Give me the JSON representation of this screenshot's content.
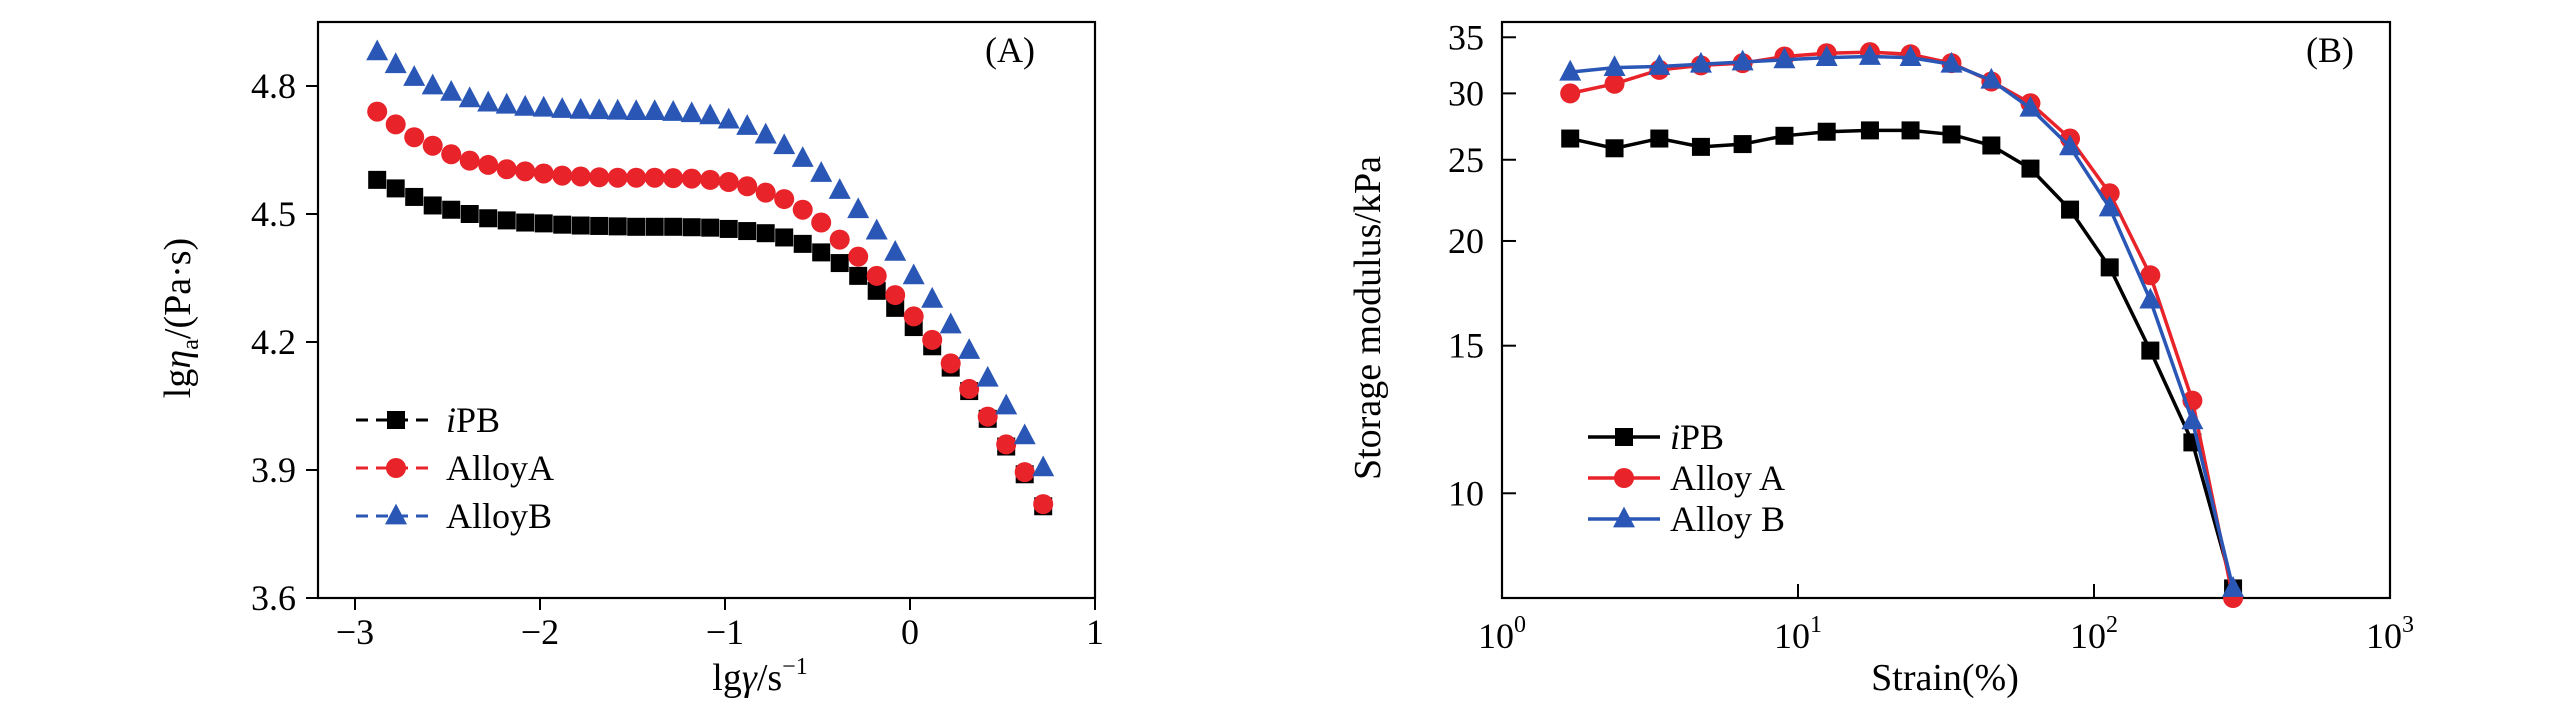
{
  "figure": {
    "panels": [
      "A",
      "B"
    ]
  },
  "chart_data": [
    {
      "type": "scatter",
      "panel_label": "(A)",
      "title": "",
      "xlabel_parts": [
        "lg",
        "γ",
        "/s",
        "−1"
      ],
      "ylabel_parts": [
        "lg",
        "η",
        "a",
        "/(Pa·s)"
      ],
      "xlim": [
        -3.2,
        1.0
      ],
      "ylim": [
        3.6,
        4.95
      ],
      "xticks": [
        -3,
        -2,
        -1,
        0,
        1
      ],
      "xtick_labels": [
        "−3",
        "−2",
        "−1",
        "0",
        "1"
      ],
      "yticks": [
        3.6,
        3.9,
        4.2,
        4.5,
        4.8
      ],
      "ytick_labels": [
        "3.6",
        "3.9",
        "4.2",
        "4.5",
        "4.8"
      ],
      "legend_position": "lower-left",
      "series": [
        {
          "name": "iPB",
          "legend_parts": [
            "i",
            "PB"
          ],
          "color": "#000000",
          "marker": "square",
          "x": [
            -2.88,
            -2.78,
            -2.68,
            -2.58,
            -2.48,
            -2.38,
            -2.28,
            -2.18,
            -2.08,
            -1.98,
            -1.88,
            -1.78,
            -1.68,
            -1.58,
            -1.48,
            -1.38,
            -1.28,
            -1.18,
            -1.08,
            -0.98,
            -0.88,
            -0.78,
            -0.68,
            -0.58,
            -0.48,
            -0.38,
            -0.28,
            -0.18,
            -0.08,
            0.02,
            0.12,
            0.22,
            0.32,
            0.42,
            0.52,
            0.62,
            0.72
          ],
          "y": [
            4.58,
            4.56,
            4.54,
            4.52,
            4.51,
            4.5,
            4.49,
            4.485,
            4.48,
            4.478,
            4.475,
            4.473,
            4.472,
            4.471,
            4.47,
            4.47,
            4.47,
            4.469,
            4.468,
            4.465,
            4.46,
            4.455,
            4.445,
            4.43,
            4.41,
            4.385,
            4.355,
            4.32,
            4.28,
            4.235,
            4.19,
            4.14,
            4.085,
            4.02,
            3.955,
            3.89,
            3.815
          ]
        },
        {
          "name": "AlloyA",
          "legend_parts": [
            "AlloyA"
          ],
          "color": "#e8232a",
          "marker": "circle",
          "x": [
            -2.88,
            -2.78,
            -2.68,
            -2.58,
            -2.48,
            -2.38,
            -2.28,
            -2.18,
            -2.08,
            -1.98,
            -1.88,
            -1.78,
            -1.68,
            -1.58,
            -1.48,
            -1.38,
            -1.28,
            -1.18,
            -1.08,
            -0.98,
            -0.88,
            -0.78,
            -0.68,
            -0.58,
            -0.48,
            -0.38,
            -0.28,
            -0.18,
            -0.08,
            0.02,
            0.12,
            0.22,
            0.32,
            0.42,
            0.52,
            0.62,
            0.72
          ],
          "y": [
            4.74,
            4.71,
            4.68,
            4.66,
            4.64,
            4.625,
            4.615,
            4.605,
            4.6,
            4.595,
            4.59,
            4.588,
            4.586,
            4.585,
            4.585,
            4.585,
            4.584,
            4.583,
            4.58,
            4.575,
            4.565,
            4.55,
            4.535,
            4.51,
            4.48,
            4.44,
            4.4,
            4.355,
            4.31,
            4.26,
            4.205,
            4.15,
            4.09,
            4.025,
            3.96,
            3.895,
            3.82
          ]
        },
        {
          "name": "AlloyB",
          "legend_parts": [
            "AlloyB"
          ],
          "color": "#2a57b6",
          "marker": "triangle",
          "x": [
            -2.88,
            -2.78,
            -2.68,
            -2.58,
            -2.48,
            -2.38,
            -2.28,
            -2.18,
            -2.08,
            -1.98,
            -1.88,
            -1.78,
            -1.68,
            -1.58,
            -1.48,
            -1.38,
            -1.28,
            -1.18,
            -1.08,
            -0.98,
            -0.88,
            -0.78,
            -0.68,
            -0.58,
            -0.48,
            -0.38,
            -0.28,
            -0.18,
            -0.08,
            0.02,
            0.12,
            0.22,
            0.32,
            0.42,
            0.52,
            0.62,
            0.72
          ],
          "y": [
            4.88,
            4.85,
            4.82,
            4.8,
            4.785,
            4.77,
            4.76,
            4.755,
            4.75,
            4.748,
            4.745,
            4.743,
            4.742,
            4.741,
            4.74,
            4.74,
            4.738,
            4.735,
            4.73,
            4.72,
            4.705,
            4.685,
            4.66,
            4.63,
            4.595,
            4.555,
            4.51,
            4.46,
            4.41,
            4.355,
            4.3,
            4.24,
            4.18,
            4.115,
            4.05,
            3.98,
            3.905
          ]
        }
      ]
    },
    {
      "type": "line",
      "panel_label": "(B)",
      "title": "",
      "xlabel": "Strain(%)",
      "ylabel": "Storage modulus/kPa",
      "x_scale": "log",
      "y_scale": "log",
      "xlim": [
        1,
        1000
      ],
      "ylim": [
        7.5,
        36.5
      ],
      "xticks": [
        1,
        10,
        100,
        1000
      ],
      "xtick_labels": [
        [
          "10",
          "0"
        ],
        [
          "10",
          "1"
        ],
        [
          "10",
          "2"
        ],
        [
          "10",
          "3"
        ]
      ],
      "yticks": [
        10,
        15,
        20,
        25,
        30,
        35
      ],
      "ytick_labels": [
        "10",
        "15",
        "20",
        "25",
        "30",
        "35"
      ],
      "legend_position": "lower-left",
      "series": [
        {
          "name": "iPB",
          "legend_parts": [
            "i",
            "PB"
          ],
          "color": "#000000",
          "marker": "square",
          "x": [
            1.7,
            2.4,
            3.4,
            4.7,
            6.5,
            9,
            12.5,
            17.5,
            24,
            33,
            45,
            61,
            83,
            113,
            155,
            215,
            295
          ],
          "y": [
            26.5,
            25.8,
            26.5,
            25.9,
            26.1,
            26.7,
            27.0,
            27.1,
            27.1,
            26.8,
            26.0,
            24.4,
            21.8,
            18.6,
            14.8,
            11.5,
            7.7
          ]
        },
        {
          "name": "Alloy A",
          "legend_parts": [
            "Alloy A"
          ],
          "color": "#e8232a",
          "marker": "circle",
          "x": [
            1.7,
            2.4,
            3.4,
            4.7,
            6.5,
            9,
            12.5,
            17.5,
            24,
            33,
            45,
            61,
            83,
            113,
            155,
            215,
            295
          ],
          "y": [
            30.0,
            30.8,
            32.0,
            32.4,
            32.6,
            33.2,
            33.5,
            33.6,
            33.4,
            32.6,
            31.0,
            29.2,
            26.5,
            22.8,
            18.2,
            12.9,
            7.5
          ]
        },
        {
          "name": "Alloy B",
          "legend_parts": [
            "Alloy B"
          ],
          "color": "#2a57b6",
          "marker": "triangle",
          "x": [
            1.7,
            2.4,
            3.4,
            4.7,
            6.5,
            9,
            12.5,
            17.5,
            24,
            33,
            45,
            61,
            83,
            113,
            155,
            215,
            295
          ],
          "y": [
            31.8,
            32.2,
            32.3,
            32.5,
            32.7,
            32.9,
            33.1,
            33.2,
            33.1,
            32.5,
            31.1,
            28.8,
            25.9,
            21.9,
            17.0,
            12.2,
            7.7
          ]
        }
      ]
    }
  ]
}
